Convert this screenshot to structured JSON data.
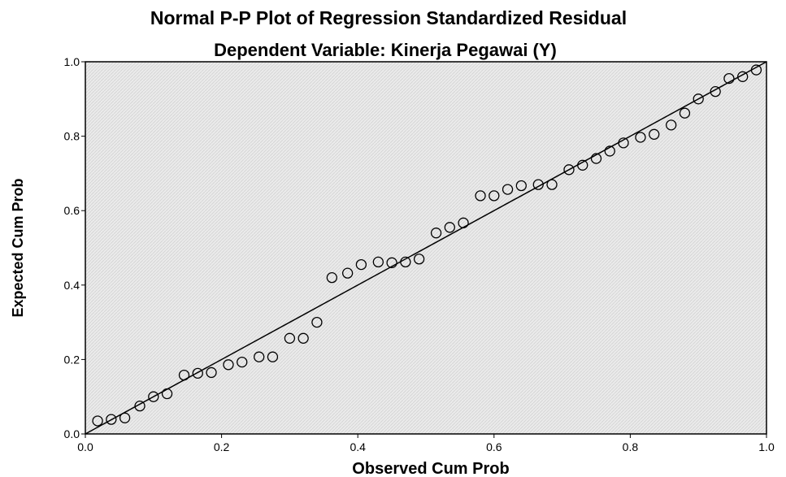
{
  "chart_data": {
    "type": "scatter",
    "title": "Normal P-P Plot of Regression Standardized Residual",
    "subtitle": "Dependent Variable: Kinerja Pegawai (Y)",
    "xlabel": "Observed Cum Prob",
    "ylabel": "Expected Cum Prob",
    "xlim": [
      0.0,
      1.0
    ],
    "ylim": [
      0.0,
      1.0
    ],
    "xticks": [
      "0.0",
      "0.2",
      "0.4",
      "0.6",
      "0.8",
      "1.0"
    ],
    "yticks": [
      "0.0",
      "0.2",
      "0.4",
      "0.6",
      "0.8",
      "1.0"
    ],
    "grid": false,
    "reference_line": [
      [
        0.0,
        0.0
      ],
      [
        1.0,
        1.0
      ]
    ],
    "points": [
      [
        0.018,
        0.035
      ],
      [
        0.038,
        0.039
      ],
      [
        0.058,
        0.043
      ],
      [
        0.08,
        0.075
      ],
      [
        0.1,
        0.1
      ],
      [
        0.12,
        0.108
      ],
      [
        0.145,
        0.158
      ],
      [
        0.165,
        0.163
      ],
      [
        0.185,
        0.165
      ],
      [
        0.21,
        0.186
      ],
      [
        0.23,
        0.193
      ],
      [
        0.255,
        0.207
      ],
      [
        0.275,
        0.207
      ],
      [
        0.3,
        0.257
      ],
      [
        0.32,
        0.257
      ],
      [
        0.34,
        0.3
      ],
      [
        0.362,
        0.42
      ],
      [
        0.385,
        0.432
      ],
      [
        0.405,
        0.455
      ],
      [
        0.43,
        0.462
      ],
      [
        0.45,
        0.46
      ],
      [
        0.47,
        0.462
      ],
      [
        0.49,
        0.47
      ],
      [
        0.515,
        0.54
      ],
      [
        0.535,
        0.555
      ],
      [
        0.555,
        0.567
      ],
      [
        0.58,
        0.64
      ],
      [
        0.6,
        0.64
      ],
      [
        0.62,
        0.657
      ],
      [
        0.64,
        0.667
      ],
      [
        0.665,
        0.67
      ],
      [
        0.685,
        0.67
      ],
      [
        0.71,
        0.71
      ],
      [
        0.73,
        0.722
      ],
      [
        0.75,
        0.74
      ],
      [
        0.77,
        0.76
      ],
      [
        0.79,
        0.782
      ],
      [
        0.815,
        0.797
      ],
      [
        0.835,
        0.805
      ],
      [
        0.86,
        0.83
      ],
      [
        0.88,
        0.862
      ],
      [
        0.9,
        0.9
      ],
      [
        0.925,
        0.92
      ],
      [
        0.945,
        0.955
      ],
      [
        0.965,
        0.96
      ],
      [
        0.985,
        0.978
      ]
    ]
  }
}
